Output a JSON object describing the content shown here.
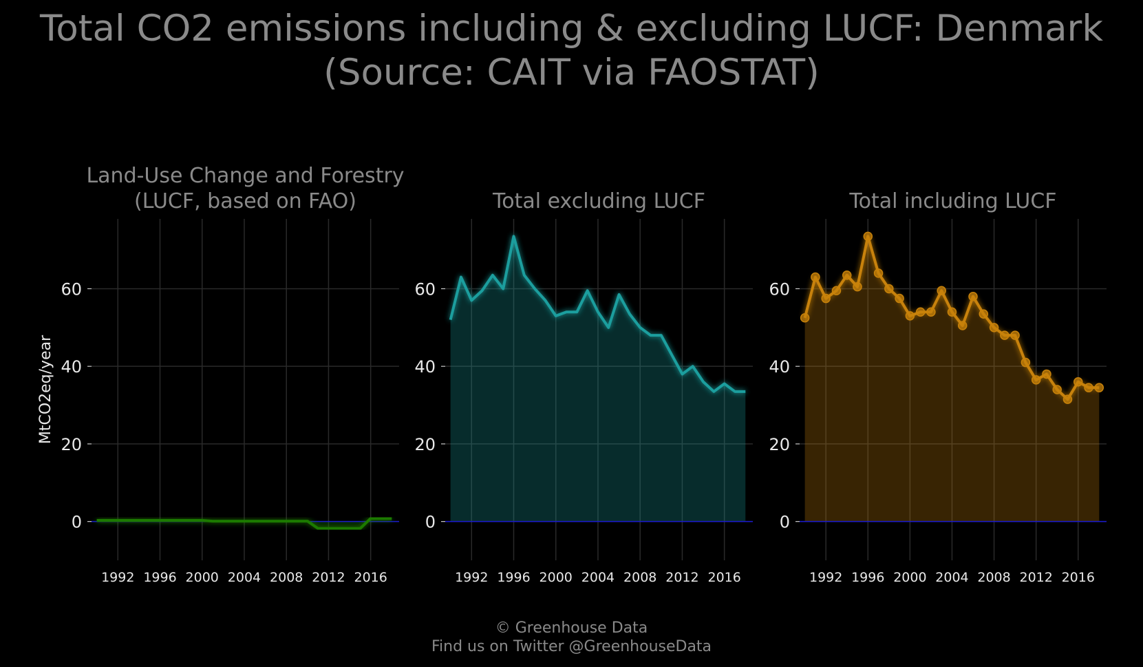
{
  "title_line1": "Total CO2 emissions including & excluding LUCF: Denmark",
  "title_line2": "(Source: CAIT via FAOSTAT)",
  "footer_line1": "© Greenhouse Data",
  "footer_line2": "Find us on Twitter @GreenhouseData",
  "chart_data": [
    {
      "type": "area",
      "title_lines": [
        "Land-Use Change and Forestry",
        "(LUCF, based on FAO)"
      ],
      "ylabel": "MtCO2eq/year",
      "xlabel": "",
      "x": [
        1990,
        1991,
        1992,
        1993,
        1994,
        1995,
        1996,
        1997,
        1998,
        1999,
        2000,
        2001,
        2002,
        2003,
        2004,
        2005,
        2006,
        2007,
        2008,
        2009,
        2010,
        2011,
        2012,
        2013,
        2014,
        2015,
        2016,
        2017,
        2018
      ],
      "values": [
        0.3,
        0.3,
        0.3,
        0.3,
        0.3,
        0.3,
        0.3,
        0.3,
        0.3,
        0.3,
        0.3,
        0.1,
        0.1,
        0.1,
        0.1,
        0.1,
        0.1,
        0.1,
        0.1,
        0.1,
        0.1,
        -1.8,
        -1.8,
        -1.8,
        -1.8,
        -1.8,
        0.8,
        0.8,
        0.8
      ],
      "color": "#1a7a00",
      "markers": false,
      "xticks": [
        1992,
        1996,
        2000,
        2004,
        2008,
        2012,
        2016
      ],
      "yticks": [
        0,
        20,
        40,
        60
      ],
      "ylim": [
        -10,
        78
      ],
      "xlim": [
        1989.5,
        2018.7
      ],
      "grid": true
    },
    {
      "type": "area",
      "title_lines": [
        "Total excluding LUCF"
      ],
      "ylabel": "",
      "xlabel": "",
      "x": [
        1990,
        1991,
        1992,
        1993,
        1994,
        1995,
        1996,
        1997,
        1998,
        1999,
        2000,
        2001,
        2002,
        2003,
        2004,
        2005,
        2006,
        2007,
        2008,
        2009,
        2010,
        2011,
        2012,
        2013,
        2014,
        2015,
        2016,
        2017,
        2018
      ],
      "values": [
        52,
        63,
        57,
        59.5,
        63.5,
        60,
        73.5,
        63.5,
        60,
        57,
        53,
        54,
        54,
        59.5,
        54,
        50,
        58.5,
        53.5,
        50,
        48,
        48,
        43,
        38,
        40,
        36,
        33.5,
        35.5,
        33.5,
        33.5
      ],
      "color": "#1a9e9e",
      "markers": false,
      "xticks": [
        1992,
        1996,
        2000,
        2004,
        2008,
        2012,
        2016
      ],
      "yticks": [
        0,
        20,
        40,
        60
      ],
      "ylim": [
        -10,
        78
      ],
      "xlim": [
        1989.5,
        2018.7
      ],
      "grid": true
    },
    {
      "type": "area",
      "title_lines": [
        "Total including LUCF"
      ],
      "ylabel": "",
      "xlabel": "",
      "x": [
        1990,
        1991,
        1992,
        1993,
        1994,
        1995,
        1996,
        1997,
        1998,
        1999,
        2000,
        2001,
        2002,
        2003,
        2004,
        2005,
        2006,
        2007,
        2008,
        2009,
        2010,
        2011,
        2012,
        2013,
        2014,
        2015,
        2016,
        2017,
        2018
      ],
      "values": [
        52.5,
        63,
        57.5,
        59.5,
        63.5,
        60.5,
        73.5,
        64,
        60,
        57.5,
        53,
        54,
        54,
        59.5,
        54,
        50.5,
        58,
        53.5,
        50,
        48,
        48,
        41,
        36.5,
        38,
        34,
        31.5,
        36,
        34.5,
        34.5
      ],
      "color": "#c8820a",
      "markers": true,
      "xticks": [
        1992,
        1996,
        2000,
        2004,
        2008,
        2012,
        2016
      ],
      "yticks": [
        0,
        20,
        40,
        60
      ],
      "ylim": [
        -10,
        78
      ],
      "xlim": [
        1989.5,
        2018.7
      ],
      "grid": true
    }
  ]
}
